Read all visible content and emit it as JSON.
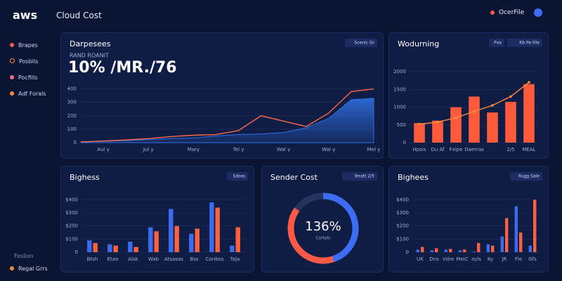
{
  "header": {
    "logo": "aws",
    "title": "Cloud Cost",
    "button": "OcerFile"
  },
  "sidebar": {
    "items": [
      "Brapes",
      "Posbils",
      "Pocfills",
      "Adf Forals"
    ],
    "footer": "Feslion",
    "footer_item": "Regal Grrs"
  },
  "chart_data": [
    {
      "type": "area_line",
      "title": "Darpesees",
      "badge": "Scenic Gr",
      "subtitle": "RAND ROANIT",
      "headline": "10% /MR./76",
      "categories": [
        null,
        "Aul y",
        null,
        "Jul y",
        null,
        "Mary",
        null,
        "Tel y",
        null,
        "Wal y",
        null,
        "Wal y",
        null,
        "Mel y"
      ],
      "series": [
        {
          "color": "#2f6fe0",
          "fill": true,
          "values": [
            5,
            10,
            15,
            22,
            30,
            35,
            50,
            60,
            65,
            75,
            110,
            180,
            320,
            330
          ]
        },
        {
          "color": "#ff6a4d",
          "values": [
            5,
            12,
            20,
            30,
            45,
            55,
            60,
            90,
            200,
            160,
            120,
            220,
            380,
            400
          ]
        }
      ],
      "ylim": [
        0,
        450
      ],
      "yticks": [
        0,
        100,
        200,
        300,
        400
      ],
      "grid": true
    },
    {
      "type": "bar_line",
      "title": "Wodurning",
      "badges": [
        "Pxa",
        "Kb Pe File"
      ],
      "categories": [
        "Hpsis",
        "Du Af",
        "Fxipe",
        "Daerras",
        null,
        "2/5",
        "MEAL"
      ],
      "series": [
        {
          "color": "#ff5a3c",
          "values": [
            550,
            620,
            1000,
            1300,
            850,
            1150,
            1650
          ]
        },
        {
          "color": "#ff8a3c",
          "values": [
            520,
            580,
            700,
            880,
            1050,
            1300,
            1700
          ]
        }
      ],
      "ylim": [
        0,
        2200
      ],
      "yticks": [
        0,
        500,
        1000,
        1500,
        2000
      ],
      "grid": true
    },
    {
      "type": "grouped_bar",
      "title": "Bighess",
      "badge": "Sdoss",
      "categories": [
        "Btsh",
        "Etao",
        "Alsk",
        "Wab",
        "Atsaoss",
        "Bss",
        "Coribss",
        "Taja"
      ],
      "series": [
        {
          "color": "#3b6cf0",
          "values": [
            90,
            60,
            80,
            190,
            330,
            140,
            380,
            50
          ]
        },
        {
          "color": "#ff6040",
          "values": [
            70,
            50,
            40,
            160,
            200,
            180,
            340,
            190
          ]
        }
      ],
      "ylim": [
        0,
        450
      ],
      "yticks": [
        0,
        {
          "value": 100,
          "label": "$100"
        },
        {
          "value": 200,
          "label": "$200"
        },
        {
          "value": 300,
          "label": "$300"
        },
        {
          "value": 400,
          "label": "$400"
        }
      ],
      "grid": true
    },
    {
      "type": "donut",
      "title": "Sender Cost",
      "badge": "Teratt 2/5",
      "center": "136%",
      "center_sub": "Cortalc",
      "values": [
        45,
        40,
        15
      ],
      "colors": [
        "#3d6df2",
        "#ff5a48",
        "#26335f"
      ]
    },
    {
      "type": "grouped_bar",
      "title": "Bighees",
      "badge": "Rugg Sale",
      "categories": [
        "UK",
        "Dns",
        "Vdre",
        "MeiC",
        "ayls",
        "Ky",
        "JR",
        "Fle",
        "Gfs"
      ],
      "series": [
        {
          "color": "#3b6cf0",
          "values": [
            20,
            15,
            20,
            15,
            5,
            60,
            120,
            350,
            50
          ]
        },
        {
          "color": "#ff6040",
          "values": [
            40,
            30,
            25,
            20,
            70,
            50,
            260,
            150,
            400
          ]
        }
      ],
      "ylim": [
        0,
        450
      ],
      "yticks": [
        0,
        {
          "value": 100,
          "label": "$100"
        },
        {
          "value": 200,
          "label": "$200"
        },
        {
          "value": 300,
          "label": "$300"
        },
        {
          "value": 400,
          "label": "$400"
        }
      ],
      "grid": true
    }
  ]
}
